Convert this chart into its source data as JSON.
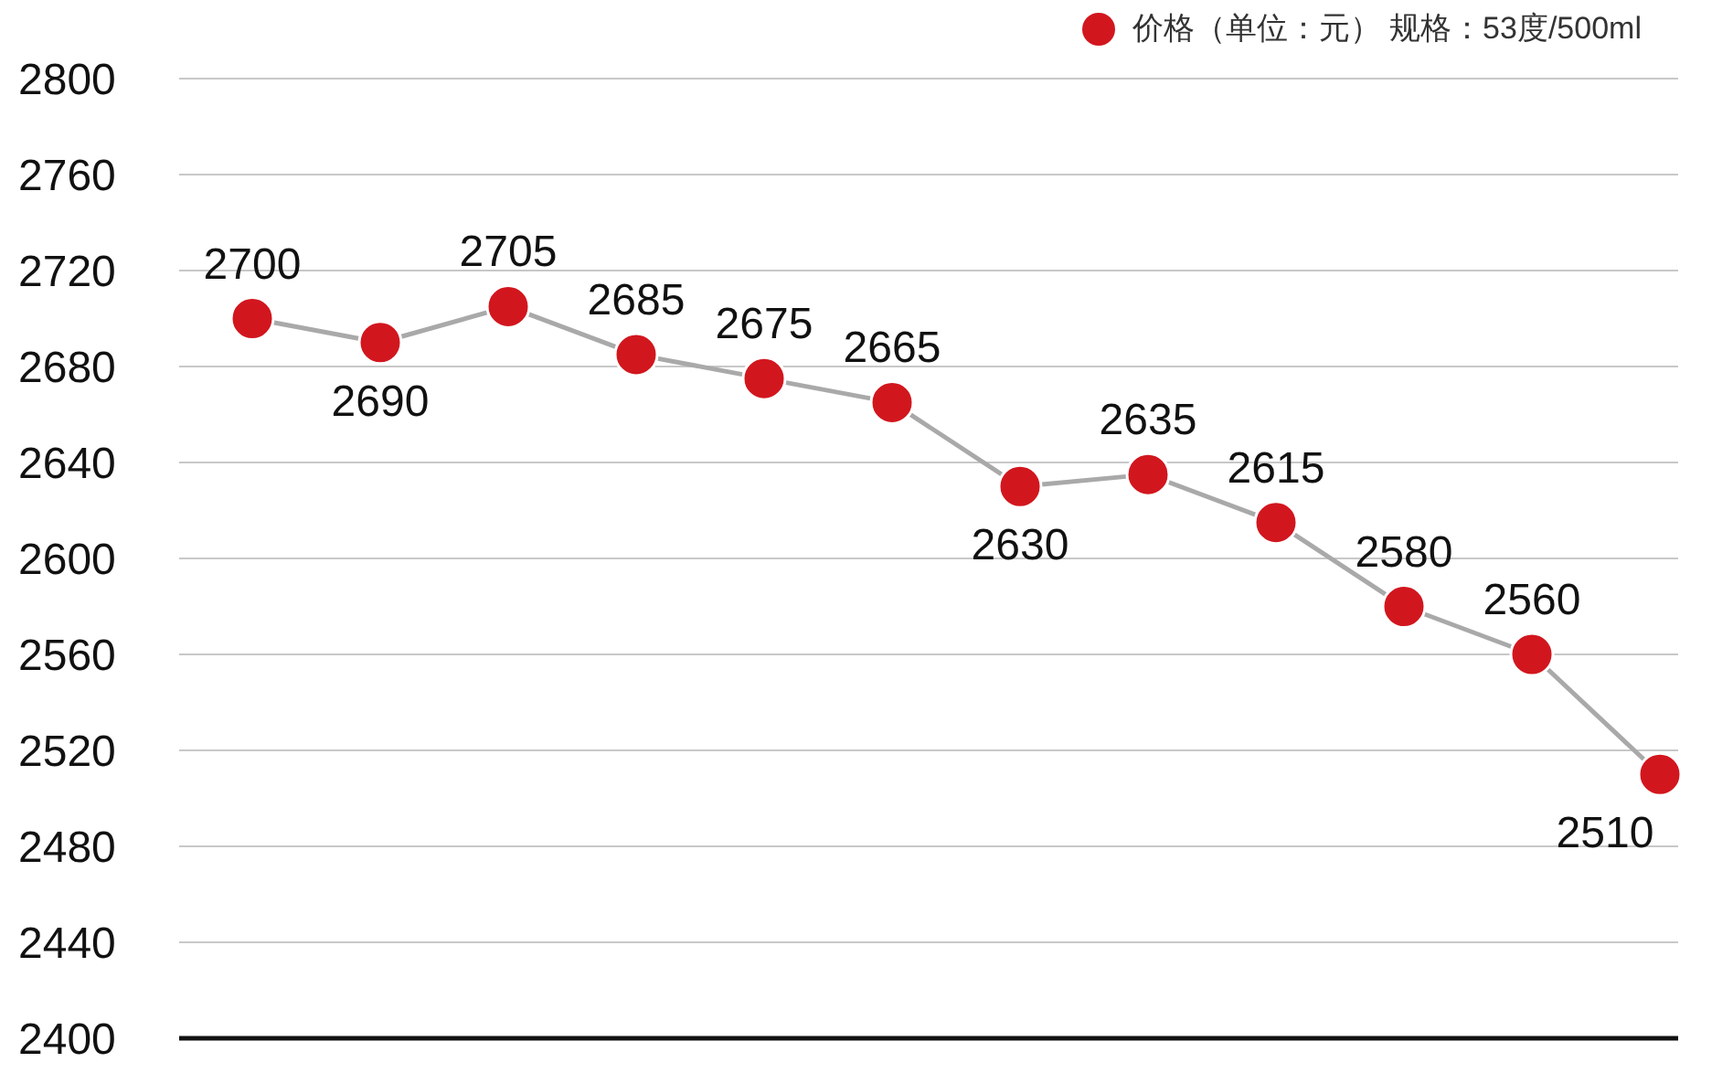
{
  "chart_data": {
    "type": "line",
    "categories": [
      null,
      null,
      null,
      null,
      null,
      null,
      null,
      null,
      null,
      null,
      null,
      null
    ],
    "series": [
      {
        "name": "价格（单位：元） 规格：53度/500ml",
        "color": "#d2161e",
        "values": [
          2700,
          2690,
          2705,
          2685,
          2675,
          2665,
          2630,
          2635,
          2615,
          2580,
          2560,
          2510
        ]
      }
    ],
    "ylim": [
      2400,
      2800
    ],
    "yticks": [
      2400,
      2440,
      2480,
      2520,
      2560,
      2600,
      2640,
      2680,
      2720,
      2760,
      2800
    ],
    "grid": "y",
    "legend": "top right",
    "marker": "circle",
    "data_labels": true
  }
}
